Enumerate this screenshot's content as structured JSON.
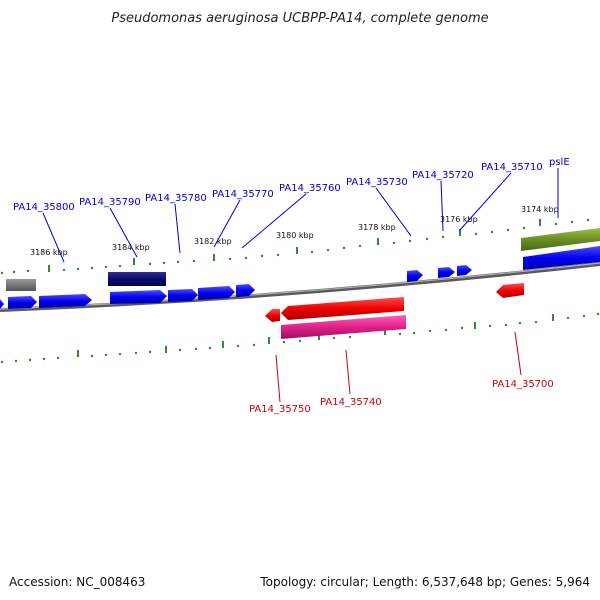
{
  "title": "Pseudomonas aeruginosa UCBPP-PA14, complete genome",
  "footer": {
    "accession": "Accession: NC_008463",
    "summary": "Topology: circular; Length: 6,537,648 bp; Genes: 5,964"
  },
  "scale_labels": [
    "3186 kbp",
    "3184 kbp",
    "3182 kbp",
    "3180 kbp",
    "3178 kbp",
    "3176 kbp",
    "3174 kbp"
  ],
  "forward_gene_labels": [
    "PA14_35800",
    "PA14_35790",
    "PA14_35780",
    "PA14_35770",
    "PA14_35760",
    "PA14_35730",
    "PA14_35720",
    "PA14_35710",
    "pslE"
  ],
  "reverse_gene_labels": [
    "PA14_35750",
    "PA14_35740",
    "PA14_35700"
  ],
  "colors": {
    "forward_gene": "#0000ee",
    "forward_cds_dark": "#0a0a70",
    "reverse_gene": "#ee0000",
    "reverse_cds": "#e0208a",
    "pseudo_gene": "#6b8e23",
    "other_feature": "#777777",
    "backbone": "#888888",
    "tick": "#2e8b2e"
  }
}
